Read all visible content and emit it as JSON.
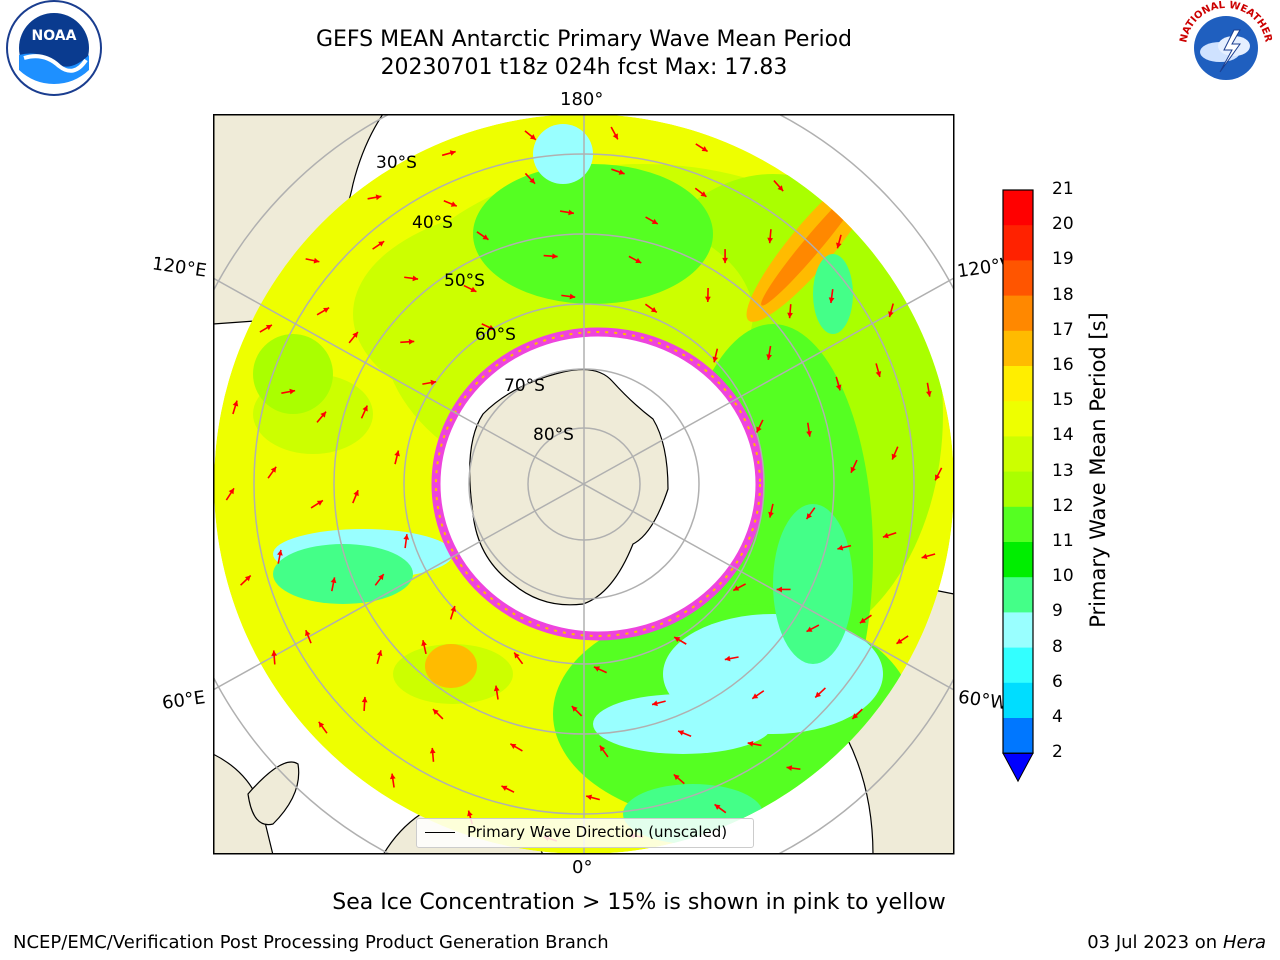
{
  "header": {
    "title_line1": "GEFS MEAN Antarctic Primary Wave Mean Period",
    "title_line2": "20230701 t18z 024h fcst   Max: 17.83"
  },
  "logos": {
    "left": {
      "name": "NOAA",
      "ring_text": "NATIONAL OCEANIC AND ATMOSPHERIC ADMINISTRATION · U.S. DEPARTMENT OF COMMERCE"
    },
    "right": {
      "name": "NATIONAL WEATHER SERVICE"
    }
  },
  "map": {
    "projection": "South Polar Stereographic",
    "longitude_labels": {
      "top": "180°",
      "bottom": "0°",
      "upper_left": "120°E",
      "lower_left": "60°E",
      "upper_right": "120°W",
      "lower_right": "60°W"
    },
    "latitude_labels": [
      "30°S",
      "40°S",
      "50°S",
      "60°S",
      "70°S",
      "80°S"
    ],
    "legend": "Primary Wave Direction (unscaled)",
    "colors": {
      "land": "#efebd8",
      "ice_free_shelf": "#ffffff",
      "ice_edge": "#ee44dd",
      "arrow": "#ff0000",
      "grid": "#b0b0b0"
    }
  },
  "colorbar": {
    "label": "Primary Wave Mean Period [s]",
    "ticks": [
      "2",
      "4",
      "6",
      "8",
      "9",
      "10",
      "11",
      "12",
      "13",
      "14",
      "15",
      "16",
      "17",
      "18",
      "19",
      "20",
      "21"
    ],
    "colors": [
      "#0077ff",
      "#00ddff",
      "#33ffff",
      "#99ffff",
      "#44ff88",
      "#00ee00",
      "#55ff22",
      "#aaff00",
      "#ccff00",
      "#eeff00",
      "#ffee00",
      "#ffbb00",
      "#ff8800",
      "#ff5500",
      "#ff2200",
      "#ff0000"
    ],
    "extend_color": "#0000ff"
  },
  "annotation": "Sea Ice Concentration > 15% is shown in pink to yellow",
  "footer": {
    "left": "NCEP/EMC/Verification Post Processing Product Generation Branch",
    "right_prefix": "03 Jul 2023 on ",
    "right_machine": "Hera"
  }
}
